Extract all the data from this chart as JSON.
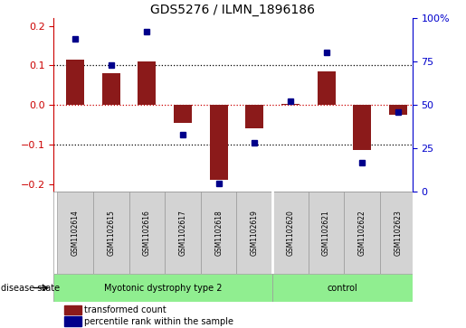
{
  "title": "GDS5276 / ILMN_1896186",
  "samples": [
    "GSM1102614",
    "GSM1102615",
    "GSM1102616",
    "GSM1102617",
    "GSM1102618",
    "GSM1102619",
    "GSM1102620",
    "GSM1102621",
    "GSM1102622",
    "GSM1102623"
  ],
  "transformed_count": [
    0.115,
    0.08,
    0.11,
    -0.045,
    -0.19,
    -0.06,
    0.003,
    0.085,
    -0.115,
    -0.025
  ],
  "percentile_rank": [
    88,
    73,
    92,
    33,
    5,
    28,
    52,
    80,
    17,
    46
  ],
  "group1_count": 6,
  "group2_count": 4,
  "group_separator_x": 5.5,
  "group1_label": "Myotonic dystrophy type 2",
  "group2_label": "control",
  "group_color": "#90EE90",
  "sample_box_color": "#D3D3D3",
  "ylim_left": [
    -0.22,
    0.22
  ],
  "ylim_right": [
    0,
    100
  ],
  "yticks_left": [
    -0.2,
    -0.1,
    0.0,
    0.1,
    0.2
  ],
  "yticks_right": [
    0,
    25,
    50,
    75,
    100
  ],
  "bar_color": "#8B1A1A",
  "dot_color": "#00008B",
  "disease_state_label": "disease state",
  "legend_bar_label": "transformed count",
  "legend_dot_label": "percentile rank within the sample",
  "bg_color": "#FFFFFF",
  "tick_label_color_left": "#CC0000",
  "tick_label_color_right": "#0000CC",
  "hline_color_zero": "#CC0000",
  "hline_color_other": "#000000",
  "bar_width": 0.5,
  "xlim": [
    -0.6,
    9.4
  ]
}
